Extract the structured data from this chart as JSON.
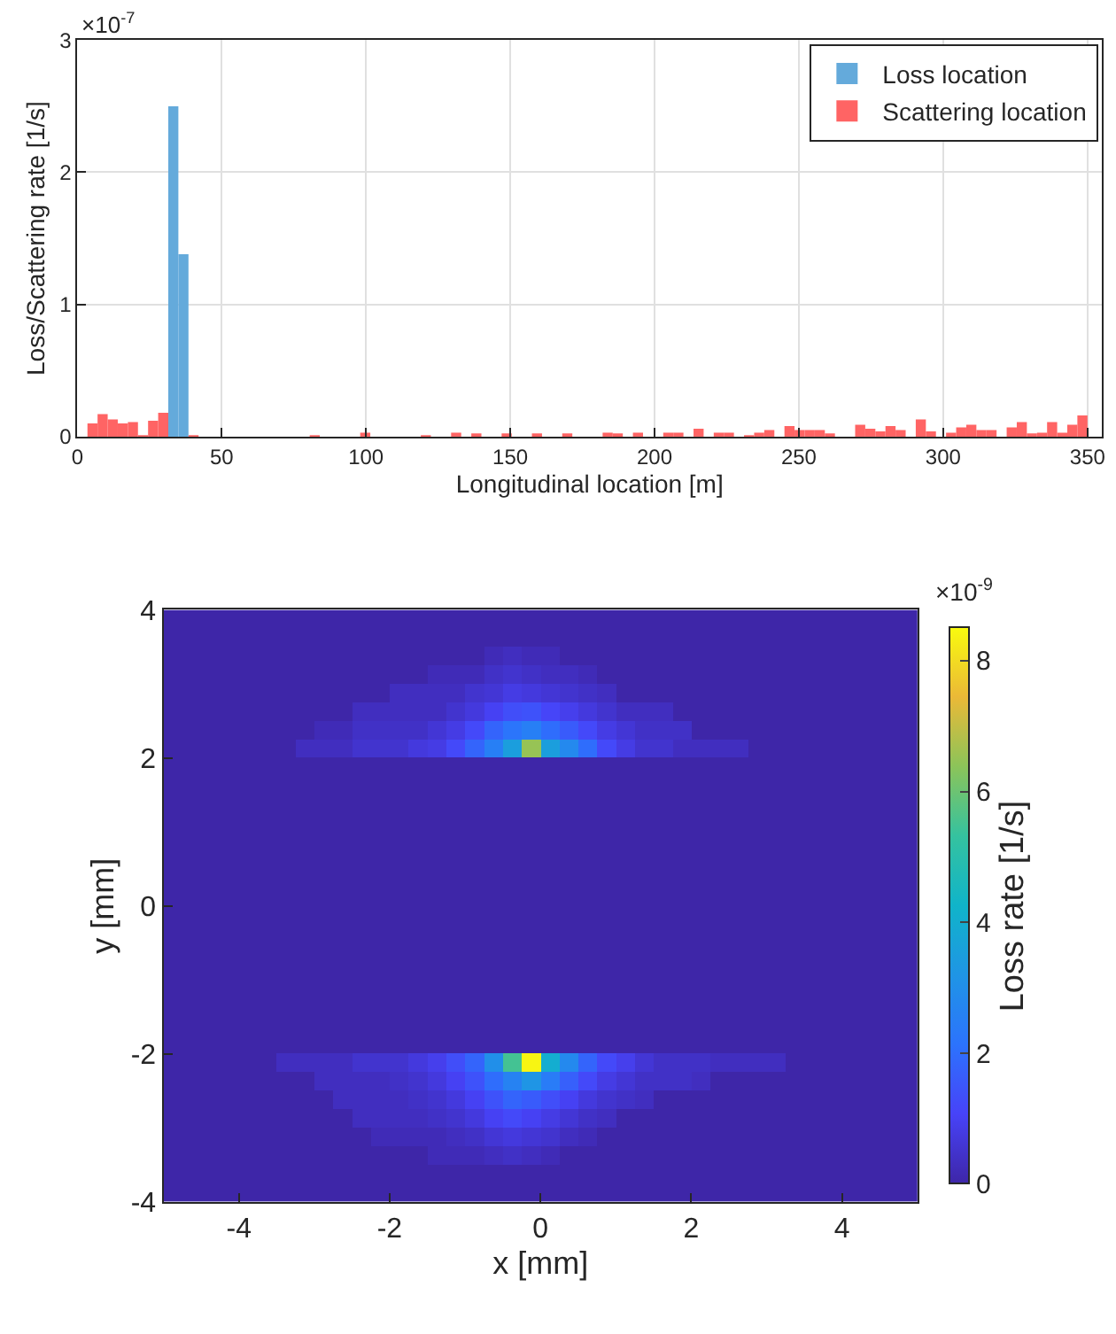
{
  "chart_data": [
    {
      "type": "histogram",
      "xlabel": "Longitudinal location [m]",
      "ylabel": "Loss/Scattering rate [1/s]",
      "annotations": [
        "×10$^{-7}$"
      ],
      "bins": [
        0,
        3.5,
        7,
        10.5,
        14,
        17.5,
        21,
        24.5,
        28,
        31.5,
        35,
        38.5,
        42,
        45.5,
        49,
        52.5,
        56,
        59.5,
        63,
        66.5,
        70,
        73.5,
        77,
        80.5,
        84,
        87.5,
        91,
        94.5,
        98,
        101.5,
        105,
        108.5,
        112,
        115.5,
        119,
        122.5,
        126,
        129.5,
        133,
        136.5,
        140,
        143.5,
        147,
        150.5,
        154,
        157.5,
        161,
        164.5,
        168,
        171.5,
        175,
        178.5,
        182,
        185.5,
        189,
        192.5,
        196,
        199.5,
        203,
        206.5,
        210,
        213.5,
        217,
        220.5,
        224,
        227.5,
        231,
        234.5,
        238,
        241.5,
        245,
        248.5,
        252,
        255.5,
        259,
        262.5,
        266,
        269.5,
        273,
        276.5,
        280,
        283.5,
        287,
        290.5,
        294,
        297.5,
        301,
        304.5,
        308,
        311.5,
        315,
        318.5,
        322,
        325.5,
        329,
        332.5,
        336,
        339.5,
        343,
        346.5,
        350
      ],
      "series": [
        {
          "name": "Loss location",
          "color": "#64aadb",
          "values": [
            0,
            0,
            0,
            0,
            0,
            0,
            0,
            0,
            0,
            2.5,
            1.38,
            0,
            0,
            0,
            0,
            0,
            0,
            0,
            0,
            0,
            0,
            0,
            0,
            0,
            0,
            0,
            0,
            0,
            0,
            0,
            0,
            0,
            0,
            0,
            0,
            0,
            0,
            0,
            0,
            0,
            0,
            0,
            0,
            0,
            0,
            0,
            0,
            0,
            0,
            0,
            0,
            0,
            0,
            0,
            0,
            0,
            0,
            0,
            0,
            0,
            0,
            0,
            0,
            0,
            0,
            0,
            0,
            0,
            0,
            0,
            0,
            0,
            0,
            0,
            0,
            0,
            0,
            0,
            0,
            0,
            0,
            0,
            0,
            0,
            0,
            0,
            0,
            0,
            0,
            0,
            0,
            0,
            0,
            0,
            0,
            0,
            0,
            0,
            0,
            0
          ]
        },
        {
          "name": "Scattering location",
          "color": "#ff6464",
          "values": [
            0,
            0.1,
            0.17,
            0.13,
            0.1,
            0.11,
            0.01,
            0.12,
            0.18,
            0,
            0,
            0.01,
            0,
            0,
            0,
            0,
            0,
            0,
            0,
            0,
            0,
            0,
            0,
            0.01,
            0,
            0,
            0,
            0,
            0.03,
            0,
            0,
            0,
            0,
            0,
            0.01,
            0,
            0,
            0.03,
            0,
            0.02,
            0,
            0,
            0.02,
            0,
            0,
            0.02,
            0,
            0,
            0.02,
            0,
            0,
            0,
            0.03,
            0.02,
            0,
            0.03,
            0,
            0,
            0.03,
            0.03,
            0,
            0.06,
            0,
            0.03,
            0.03,
            0,
            0.01,
            0.03,
            0.05,
            0,
            0.08,
            0.05,
            0.05,
            0.05,
            0.02,
            0,
            0,
            0.09,
            0.06,
            0.04,
            0.08,
            0.05,
            0,
            0.13,
            0.04,
            0,
            0.03,
            0.07,
            0.09,
            0.05,
            0.05,
            0,
            0.07,
            0.11,
            0.02,
            0.03,
            0.11,
            0.03,
            0.09,
            0.16
          ]
        }
      ],
      "xlim": [
        0,
        355
      ],
      "xticks": [
        0,
        50,
        100,
        150,
        200,
        250,
        300,
        350
      ],
      "ylim": [
        0,
        3
      ],
      "yticks": [
        0,
        1,
        2,
        3
      ],
      "grid": true,
      "legend": "top right"
    },
    {
      "type": "heatmap",
      "xlabel": "x [mm]",
      "ylabel": "y [mm]",
      "clabel": "Loss rate [1/s]",
      "annotations": [
        "×10$^{-9}$"
      ],
      "x": [
        -4.875,
        -4.625,
        -4.375,
        -4.125,
        -3.875,
        -3.625,
        -3.375,
        -3.125,
        -2.875,
        -2.625,
        -2.375,
        -2.125,
        -1.875,
        -1.625,
        -1.375,
        -1.125,
        -0.875,
        -0.625,
        -0.375,
        -0.125,
        0.125,
        0.375,
        0.625,
        0.875,
        1.125,
        1.375,
        1.625,
        1.875,
        2.125,
        2.375,
        2.625,
        2.875,
        3.125,
        3.375,
        3.625,
        3.875,
        4.125,
        4.375,
        4.625,
        4.875
      ],
      "y": [
        3.875,
        3.625,
        3.375,
        3.125,
        2.875,
        2.625,
        2.375,
        2.125,
        1.875,
        1.625,
        1.375,
        1.125,
        0.875,
        0.625,
        0.375,
        0.125,
        -0.125,
        -0.375,
        -0.625,
        -0.875,
        -1.125,
        -1.375,
        -1.625,
        -1.875,
        -2.125,
        -2.375,
        -2.625,
        -2.875,
        -3.125,
        -3.375,
        -3.625,
        -3.875
      ],
      "cells": [
        [
          0,
          0,
          0,
          0,
          0,
          0,
          0,
          0,
          0,
          0,
          0,
          0,
          0,
          0,
          0,
          0,
          0,
          0,
          0,
          0,
          0,
          0,
          0,
          0,
          0,
          0,
          0,
          0,
          0,
          0,
          0,
          0,
          0,
          0,
          0,
          0,
          0,
          0,
          0,
          0
        ],
        [
          0,
          0,
          0,
          0,
          0,
          0,
          0,
          0,
          0,
          0,
          0,
          0,
          0,
          0,
          0,
          0,
          0,
          0,
          0,
          0,
          0,
          0,
          0,
          0,
          0,
          0,
          0,
          0,
          0,
          0,
          0,
          0,
          0,
          0,
          0,
          0,
          0,
          0,
          0,
          0
        ],
        [
          0,
          0,
          0,
          0,
          0,
          0,
          0,
          0,
          0,
          0,
          0,
          0,
          0,
          0,
          0,
          0,
          0,
          0.2,
          0.3,
          0.2,
          0.2,
          0,
          0,
          0,
          0,
          0,
          0,
          0,
          0,
          0,
          0,
          0,
          0,
          0,
          0,
          0,
          0,
          0,
          0,
          0
        ],
        [
          0,
          0,
          0,
          0,
          0,
          0,
          0,
          0,
          0,
          0,
          0,
          0,
          0,
          0,
          0.2,
          0.2,
          0.2,
          0.4,
          0.5,
          0.4,
          0.3,
          0.3,
          0.2,
          0,
          0,
          0,
          0,
          0,
          0,
          0,
          0,
          0,
          0,
          0,
          0,
          0,
          0,
          0,
          0,
          0
        ],
        [
          0,
          0,
          0,
          0,
          0,
          0,
          0,
          0,
          0,
          0,
          0,
          0,
          0.3,
          0.3,
          0.3,
          0.3,
          0.5,
          0.6,
          0.8,
          0.7,
          0.6,
          0.5,
          0.4,
          0.3,
          0,
          0,
          0,
          0,
          0,
          0,
          0,
          0,
          0,
          0,
          0,
          0,
          0,
          0,
          0,
          0
        ],
        [
          0,
          0,
          0,
          0,
          0,
          0,
          0,
          0,
          0,
          0,
          0.3,
          0.3,
          0.3,
          0.3,
          0.3,
          0.5,
          0.7,
          1.0,
          1.3,
          1.4,
          1.1,
          0.9,
          0.7,
          0.5,
          0.3,
          0.3,
          0.3,
          0,
          0,
          0,
          0,
          0,
          0,
          0,
          0,
          0,
          0,
          0,
          0,
          0
        ],
        [
          0,
          0,
          0,
          0,
          0,
          0,
          0,
          0,
          0.2,
          0.2,
          0.4,
          0.4,
          0.4,
          0.4,
          0.6,
          0.8,
          1.2,
          1.8,
          2.2,
          2.5,
          2.0,
          1.6,
          1.2,
          0.8,
          0.6,
          0.4,
          0.4,
          0.4,
          0,
          0,
          0,
          0,
          0,
          0,
          0,
          0,
          0,
          0,
          0,
          0
        ],
        [
          0,
          0,
          0,
          0,
          0,
          0,
          0,
          0.3,
          0.3,
          0.3,
          0.5,
          0.5,
          0.5,
          0.7,
          0.8,
          1.2,
          1.8,
          2.5,
          3.5,
          6.5,
          3.5,
          2.8,
          2.0,
          1.2,
          0.8,
          0.5,
          0.5,
          0.3,
          0.3,
          0.3,
          0.3,
          0,
          0,
          0,
          0,
          0,
          0,
          0,
          0,
          0
        ],
        [
          0,
          0,
          0,
          0,
          0,
          0,
          0,
          0,
          0,
          0,
          0,
          0,
          0,
          0,
          0,
          0,
          0,
          0,
          0,
          0,
          0,
          0,
          0,
          0,
          0,
          0,
          0,
          0,
          0,
          0,
          0,
          0,
          0,
          0,
          0,
          0,
          0,
          0,
          0,
          0
        ],
        [
          0,
          0,
          0,
          0,
          0,
          0,
          0,
          0,
          0,
          0,
          0,
          0,
          0,
          0,
          0,
          0,
          0,
          0,
          0,
          0,
          0,
          0,
          0,
          0,
          0,
          0,
          0,
          0,
          0,
          0,
          0,
          0,
          0,
          0,
          0,
          0,
          0,
          0,
          0,
          0
        ],
        [
          0,
          0,
          0,
          0,
          0,
          0,
          0,
          0,
          0,
          0,
          0,
          0,
          0,
          0,
          0,
          0,
          0,
          0,
          0,
          0,
          0,
          0,
          0,
          0,
          0,
          0,
          0,
          0,
          0,
          0,
          0,
          0,
          0,
          0,
          0,
          0,
          0,
          0,
          0,
          0
        ],
        [
          0,
          0,
          0,
          0,
          0,
          0,
          0,
          0,
          0,
          0,
          0,
          0,
          0,
          0,
          0,
          0,
          0,
          0,
          0,
          0,
          0,
          0,
          0,
          0,
          0,
          0,
          0,
          0,
          0,
          0,
          0,
          0,
          0,
          0,
          0,
          0,
          0,
          0,
          0,
          0
        ],
        [
          0,
          0,
          0,
          0,
          0,
          0,
          0,
          0,
          0,
          0,
          0,
          0,
          0,
          0,
          0,
          0,
          0,
          0,
          0,
          0,
          0,
          0,
          0,
          0,
          0,
          0,
          0,
          0,
          0,
          0,
          0,
          0,
          0,
          0,
          0,
          0,
          0,
          0,
          0,
          0
        ],
        [
          0,
          0,
          0,
          0,
          0,
          0,
          0,
          0,
          0,
          0,
          0,
          0,
          0,
          0,
          0,
          0,
          0,
          0,
          0,
          0,
          0,
          0,
          0,
          0,
          0,
          0,
          0,
          0,
          0,
          0,
          0,
          0,
          0,
          0,
          0,
          0,
          0,
          0,
          0,
          0
        ],
        [
          0,
          0,
          0,
          0,
          0,
          0,
          0,
          0,
          0,
          0,
          0,
          0,
          0,
          0,
          0,
          0,
          0,
          0,
          0,
          0,
          0,
          0,
          0,
          0,
          0,
          0,
          0,
          0,
          0,
          0,
          0,
          0,
          0,
          0,
          0,
          0,
          0,
          0,
          0,
          0
        ],
        [
          0,
          0,
          0,
          0,
          0,
          0,
          0,
          0,
          0,
          0,
          0,
          0,
          0,
          0,
          0,
          0,
          0,
          0,
          0,
          0,
          0,
          0,
          0,
          0,
          0,
          0,
          0,
          0,
          0,
          0,
          0,
          0,
          0,
          0,
          0,
          0,
          0,
          0,
          0,
          0
        ],
        [
          0,
          0,
          0,
          0,
          0,
          0,
          0,
          0,
          0,
          0,
          0,
          0,
          0,
          0,
          0,
          0,
          0,
          0,
          0,
          0,
          0,
          0,
          0,
          0,
          0,
          0,
          0,
          0,
          0,
          0,
          0,
          0,
          0,
          0,
          0,
          0,
          0,
          0,
          0,
          0
        ],
        [
          0,
          0,
          0,
          0,
          0,
          0,
          0,
          0,
          0,
          0,
          0,
          0,
          0,
          0,
          0,
          0,
          0,
          0,
          0,
          0,
          0,
          0,
          0,
          0,
          0,
          0,
          0,
          0,
          0,
          0,
          0,
          0,
          0,
          0,
          0,
          0,
          0,
          0,
          0,
          0
        ],
        [
          0,
          0,
          0,
          0,
          0,
          0,
          0,
          0,
          0,
          0,
          0,
          0,
          0,
          0,
          0,
          0,
          0,
          0,
          0,
          0,
          0,
          0,
          0,
          0,
          0,
          0,
          0,
          0,
          0,
          0,
          0,
          0,
          0,
          0,
          0,
          0,
          0,
          0,
          0,
          0
        ],
        [
          0,
          0,
          0,
          0,
          0,
          0,
          0,
          0,
          0,
          0,
          0,
          0,
          0,
          0,
          0,
          0,
          0,
          0,
          0,
          0,
          0,
          0,
          0,
          0,
          0,
          0,
          0,
          0,
          0,
          0,
          0,
          0,
          0,
          0,
          0,
          0,
          0,
          0,
          0,
          0
        ],
        [
          0,
          0,
          0,
          0,
          0,
          0,
          0,
          0,
          0,
          0,
          0,
          0,
          0,
          0,
          0,
          0,
          0,
          0,
          0,
          0,
          0,
          0,
          0,
          0,
          0,
          0,
          0,
          0,
          0,
          0,
          0,
          0,
          0,
          0,
          0,
          0,
          0,
          0,
          0,
          0
        ],
        [
          0,
          0,
          0,
          0,
          0,
          0,
          0,
          0,
          0,
          0,
          0,
          0,
          0,
          0,
          0,
          0,
          0,
          0,
          0,
          0,
          0,
          0,
          0,
          0,
          0,
          0,
          0,
          0,
          0,
          0,
          0,
          0,
          0,
          0,
          0,
          0,
          0,
          0,
          0,
          0
        ],
        [
          0,
          0,
          0,
          0,
          0,
          0,
          0,
          0,
          0,
          0,
          0,
          0,
          0,
          0,
          0,
          0,
          0,
          0,
          0,
          0,
          0,
          0,
          0,
          0,
          0,
          0,
          0,
          0,
          0,
          0,
          0,
          0,
          0,
          0,
          0,
          0,
          0,
          0,
          0,
          0
        ],
        [
          0,
          0,
          0,
          0,
          0,
          0,
          0,
          0,
          0,
          0,
          0,
          0,
          0,
          0,
          0,
          0,
          0,
          0,
          0,
          0,
          0,
          0,
          0,
          0,
          0,
          0,
          0,
          0,
          0,
          0,
          0,
          0,
          0,
          0,
          0,
          0,
          0,
          0,
          0,
          0
        ],
        [
          0,
          0,
          0,
          0,
          0,
          0,
          0.3,
          0.3,
          0.3,
          0.3,
          0.5,
          0.5,
          0.5,
          0.7,
          0.9,
          1.3,
          1.8,
          3.0,
          5.5,
          8.4,
          4.0,
          2.8,
          1.8,
          1.2,
          0.9,
          0.6,
          0.4,
          0.4,
          0.4,
          0.3,
          0.3,
          0.3,
          0.3,
          0,
          0,
          0,
          0,
          0,
          0,
          0
        ],
        [
          0,
          0,
          0,
          0,
          0,
          0,
          0,
          0,
          0.3,
          0.3,
          0.3,
          0.3,
          0.4,
          0.5,
          0.7,
          1.0,
          1.4,
          2.0,
          2.6,
          3.2,
          2.4,
          1.7,
          1.2,
          0.8,
          0.6,
          0.4,
          0.4,
          0.4,
          0.3,
          0,
          0,
          0,
          0,
          0,
          0,
          0,
          0,
          0,
          0,
          0
        ],
        [
          0,
          0,
          0,
          0,
          0,
          0,
          0,
          0,
          0,
          0.3,
          0.3,
          0.3,
          0.3,
          0.4,
          0.5,
          0.7,
          1.0,
          1.4,
          1.8,
          1.6,
          1.3,
          1.0,
          0.7,
          0.5,
          0.4,
          0.3,
          0,
          0,
          0,
          0,
          0,
          0,
          0,
          0,
          0,
          0,
          0,
          0,
          0,
          0
        ],
        [
          0,
          0,
          0,
          0,
          0,
          0,
          0,
          0,
          0,
          0,
          0.3,
          0.3,
          0.3,
          0.3,
          0.4,
          0.5,
          0.7,
          1.0,
          1.2,
          1.0,
          0.8,
          0.6,
          0.4,
          0.3,
          0,
          0,
          0,
          0,
          0,
          0,
          0,
          0,
          0,
          0,
          0,
          0,
          0,
          0,
          0,
          0
        ],
        [
          0,
          0,
          0,
          0,
          0,
          0,
          0,
          0,
          0,
          0,
          0,
          0.2,
          0.2,
          0.2,
          0.2,
          0.3,
          0.4,
          0.6,
          0.7,
          0.6,
          0.5,
          0.3,
          0.2,
          0,
          0,
          0,
          0,
          0,
          0,
          0,
          0,
          0,
          0,
          0,
          0,
          0,
          0,
          0,
          0,
          0
        ],
        [
          0,
          0,
          0,
          0,
          0,
          0,
          0,
          0,
          0,
          0,
          0,
          0,
          0,
          0,
          0.2,
          0.2,
          0.2,
          0.3,
          0.4,
          0.3,
          0.2,
          0,
          0,
          0,
          0,
          0,
          0,
          0,
          0,
          0,
          0,
          0,
          0,
          0,
          0,
          0,
          0,
          0,
          0,
          0
        ],
        [
          0,
          0,
          0,
          0,
          0,
          0,
          0,
          0,
          0,
          0,
          0,
          0,
          0,
          0,
          0,
          0,
          0,
          0,
          0,
          0,
          0,
          0,
          0,
          0,
          0,
          0,
          0,
          0,
          0,
          0,
          0,
          0,
          0,
          0,
          0,
          0,
          0,
          0,
          0,
          0
        ],
        [
          0,
          0,
          0,
          0,
          0,
          0,
          0,
          0,
          0,
          0,
          0,
          0,
          0,
          0,
          0,
          0,
          0,
          0,
          0,
          0,
          0,
          0,
          0,
          0,
          0,
          0,
          0,
          0,
          0,
          0,
          0,
          0,
          0,
          0,
          0,
          0,
          0,
          0,
          0,
          0
        ]
      ],
      "clim": [
        0,
        8.5
      ],
      "cticks": [
        0,
        2,
        4,
        6,
        8
      ],
      "xlim": [
        -5,
        5
      ],
      "xticks": [
        -4,
        -2,
        0,
        2,
        4
      ],
      "ylim": [
        -4,
        4
      ],
      "yticks": [
        -4,
        -2,
        0,
        2,
        4
      ]
    }
  ]
}
